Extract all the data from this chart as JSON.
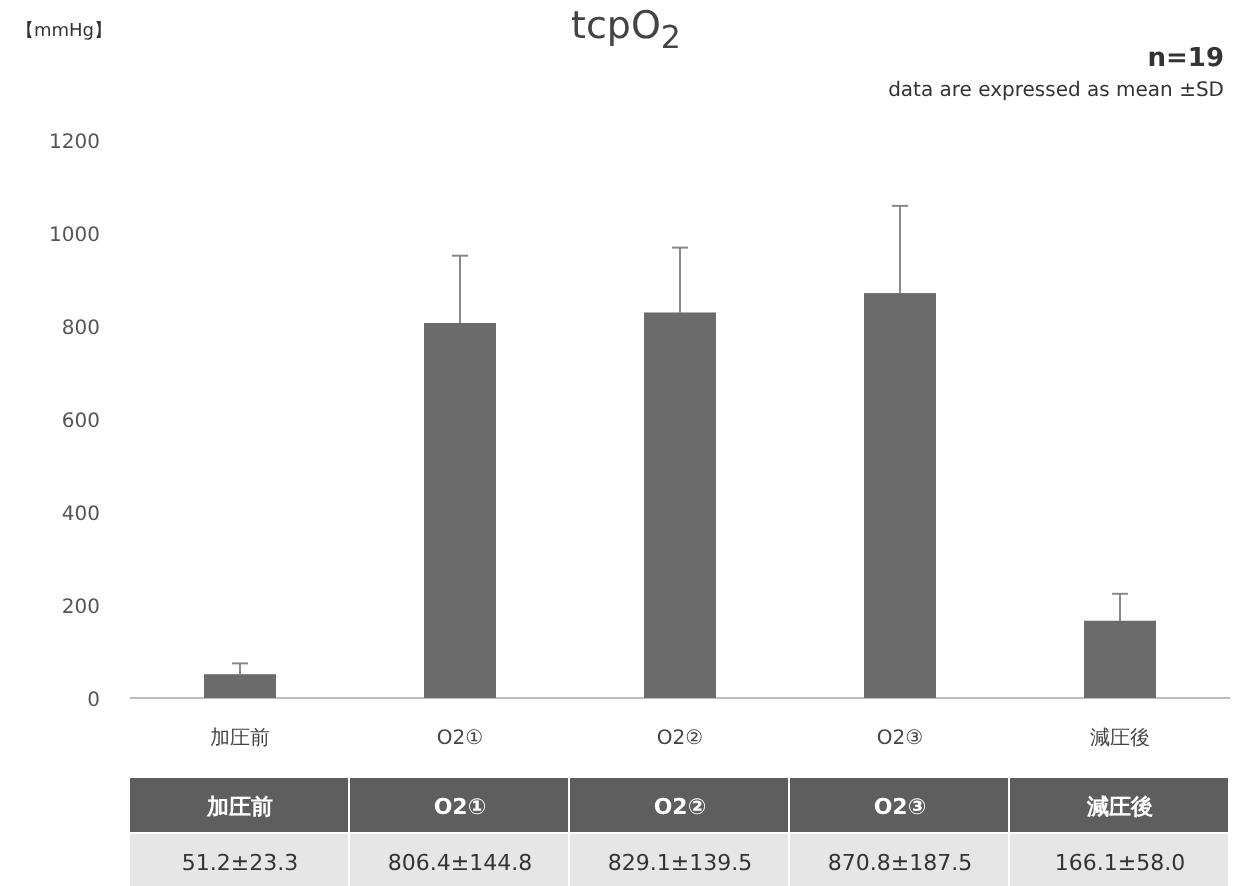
{
  "chart_data": {
    "type": "bar",
    "title": "tcpO$_{2}$",
    "ylabel": "【mmHg】",
    "annotations": [
      "n=19",
      "data are expressed as mean ±SD"
    ],
    "categories": [
      "加圧前",
      "O2①",
      "O2②",
      "O2③",
      "減圧後"
    ],
    "values": [
      51.2,
      806.4,
      829.1,
      870.8,
      166.1
    ],
    "errors": [
      [
        51.2,
        74.5
      ],
      [
        806.4,
        951.2
      ],
      [
        829.1,
        968.6
      ],
      [
        870.8,
        1058.3
      ],
      [
        166.1,
        224.1
      ]
    ],
    "value_labels": [
      "51.2±23.3",
      "806.4±144.8",
      "829.1±139.5",
      "870.8±187.5",
      "166.1±58.0"
    ],
    "color": "#6b6b6b",
    "ylim": [
      0,
      1200
    ],
    "yticks": [
      0,
      200,
      400,
      600,
      800,
      1000,
      1200
    ]
  }
}
